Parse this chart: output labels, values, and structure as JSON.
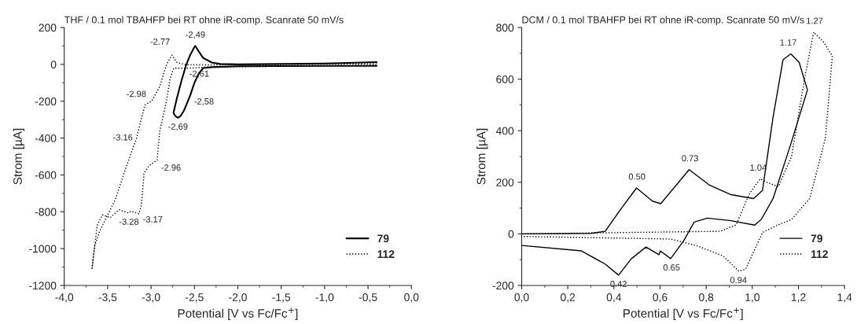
{
  "chart_data": [
    {
      "type": "line",
      "title": "THF / 0.1 mol TBAHFP bei RT ohne iR-comp. Scanrate 50 mV/s",
      "xlabel": "Potential [V vs Fc/Fc$^{+}$]",
      "ylabel": "Strom [µA]",
      "xlim": [
        -4.0,
        0.0
      ],
      "xticks": [
        {
          "value": -4.0,
          "label": "-4,0"
        },
        {
          "value": -3.5,
          "label": "-3,5"
        },
        {
          "value": -3.0,
          "label": "-3,0"
        },
        {
          "value": -2.5,
          "label": "-2,5"
        },
        {
          "value": -2.0,
          "label": "-2,0"
        },
        {
          "value": -1.5,
          "label": "-1,5"
        },
        {
          "value": -1.0,
          "label": "-1,0"
        },
        {
          "value": -0.5,
          "label": "-0,5"
        },
        {
          "value": 0.0,
          "label": "0,0"
        }
      ],
      "ylim": [
        -1200,
        200
      ],
      "yticks": [
        -1200,
        -1000,
        -800,
        -600,
        -400,
        -200,
        0,
        200
      ],
      "grid": false,
      "legend": "bottom right",
      "series": [
        {
          "name": "79",
          "color": "#000000",
          "line_style": "solid",
          "x": [
            -0.4,
            -1.0,
            -2.0,
            -2.3,
            -2.4,
            -2.45,
            -2.5,
            -2.55,
            -2.58,
            -2.62,
            -2.66,
            -2.69,
            -2.72,
            -2.74,
            -2.74,
            -2.7,
            -2.65,
            -2.6,
            -2.55,
            -2.5,
            -2.49,
            -2.45,
            -2.4,
            -2.3,
            -2.2,
            -2.0,
            -1.0,
            -0.4
          ],
          "values": [
            -8,
            -8,
            -10,
            -15,
            -20,
            -50,
            -100,
            -170,
            -205,
            -250,
            -280,
            -290,
            -280,
            -265,
            -260,
            -180,
            -90,
            -10,
            50,
            95,
            100,
            70,
            35,
            10,
            2,
            0,
            5,
            12
          ]
        },
        {
          "name": "112",
          "color": "#000000",
          "line_style": "dotted",
          "x": [
            -0.4,
            -2.4,
            -2.6,
            -2.7,
            -2.76,
            -2.82,
            -2.9,
            -2.99,
            -3.07,
            -3.17,
            -3.29,
            -3.41,
            -3.53,
            -3.59,
            -3.65,
            -3.68,
            -3.62,
            -3.56,
            -3.47,
            -3.37,
            -3.26,
            -3.23,
            -3.14,
            -3.11,
            -3.08,
            -3.02,
            -2.93,
            -2.9,
            -2.82,
            -2.78,
            -2.74,
            -2.57,
            -2.33,
            -0.4
          ],
          "values": [
            3,
            -3,
            -2,
            10,
            50,
            0,
            -120,
            -198,
            -220,
            -405,
            -562,
            -732,
            -846,
            -903,
            -988,
            -1108,
            -874,
            -817,
            -832,
            -789,
            -806,
            -797,
            -811,
            -761,
            -590,
            -548,
            -520,
            -364,
            -193,
            -78,
            -21,
            -21,
            -14,
            -5
          ]
        }
      ],
      "annotations": [
        {
          "text": "-2,49",
          "x": -2.49,
          "y": 100
        },
        {
          "text": "-2.77",
          "x": -2.77,
          "y": 50
        },
        {
          "text": "-2,61",
          "x": -2.61,
          "y": -20
        },
        {
          "text": "-2.98",
          "x": -2.98,
          "y": -198
        },
        {
          "text": "-2,58",
          "x": -2.58,
          "y": -205
        },
        {
          "text": "-2,69",
          "x": -2.69,
          "y": -290
        },
        {
          "text": "-3.16",
          "x": -3.16,
          "y": -400
        },
        {
          "text": "-2.96",
          "x": -2.96,
          "y": -530
        },
        {
          "text": "-3.28",
          "x": -3.28,
          "y": -806
        },
        {
          "text": "-3.17",
          "x": -3.17,
          "y": -811
        }
      ]
    },
    {
      "type": "line",
      "title": "DCM / 0.1 mol TBAHFP bei RT ohne iR-comp. Scanrate 50 mV/s",
      "xlabel": "Potential [V vs Fc/Fc$^{+}$]",
      "ylabel": "Strom [µA]",
      "xlim": [
        0.0,
        1.4
      ],
      "xticks": [
        {
          "value": 0.0,
          "label": "0,0"
        },
        {
          "value": 0.2,
          "label": "0,2"
        },
        {
          "value": 0.4,
          "label": "0,4"
        },
        {
          "value": 0.6,
          "label": "0,6"
        },
        {
          "value": 0.8,
          "label": "0,8"
        },
        {
          "value": 1.0,
          "label": "1,0"
        },
        {
          "value": 1.2,
          "label": "1,2"
        },
        {
          "value": 1.4,
          "label": "1,4"
        }
      ],
      "ylim": [
        -200,
        800
      ],
      "yticks": [
        -200,
        0,
        200,
        400,
        600,
        800
      ],
      "grid": false,
      "legend": "bottom right",
      "series": [
        {
          "name": "79",
          "color": "#000000",
          "line_style": "solid",
          "x": [
            0.0,
            0.3,
            0.362,
            0.43,
            0.498,
            0.567,
            0.603,
            0.726,
            0.816,
            0.908,
            1.005,
            1.044,
            1.09,
            1.133,
            1.167,
            1.203,
            1.239,
            1.164,
            1.09,
            1.039,
            1.01,
            0.908,
            0.805,
            0.748,
            0.703,
            0.646,
            0.601,
            0.595,
            0.539,
            0.476,
            0.42,
            0.362,
            0.259,
            0.0
          ],
          "values": [
            0,
            2,
            10,
            96,
            178,
            127,
            117,
            249,
            188,
            152,
            137,
            168,
            452,
            675,
            698,
            665,
            558,
            340,
            137,
            56,
            34,
            51,
            61,
            46,
            -26,
            -96,
            -66,
            -81,
            -51,
            -96,
            -160,
            -117,
            -66,
            -45
          ]
        },
        {
          "name": "112",
          "color": "#000000",
          "line_style": "dotted",
          "x": [
            0.0,
            0.862,
            0.93,
            0.988,
            1.034,
            1.068,
            1.113,
            1.17,
            1.227,
            1.266,
            1.307,
            1.347,
            1.317,
            1.249,
            1.17,
            1.102,
            1.044,
            0.971,
            0.942,
            0.874,
            0.76,
            0.646,
            0.0
          ],
          "values": [
            0,
            10,
            35,
            157,
            213,
            198,
            183,
            300,
            604,
            782,
            746,
            690,
            371,
            137,
            56,
            31,
            5,
            -137,
            -145,
            -86,
            -46,
            -20,
            -10
          ]
        }
      ],
      "annotations": [
        {
          "text": "0.50",
          "x": 0.5,
          "y": 178
        },
        {
          "text": "0.73",
          "x": 0.73,
          "y": 249
        },
        {
          "text": "1.04",
          "x": 1.04,
          "y": 213
        },
        {
          "text": "1.17",
          "x": 1.17,
          "y": 698
        },
        {
          "text": "1.27",
          "x": 1.27,
          "y": 782
        },
        {
          "text": "0.42",
          "x": 0.42,
          "y": -160
        },
        {
          "text": "0.65",
          "x": 0.65,
          "y": -96
        },
        {
          "text": "0.94",
          "x": 0.94,
          "y": -145
        }
      ]
    }
  ]
}
